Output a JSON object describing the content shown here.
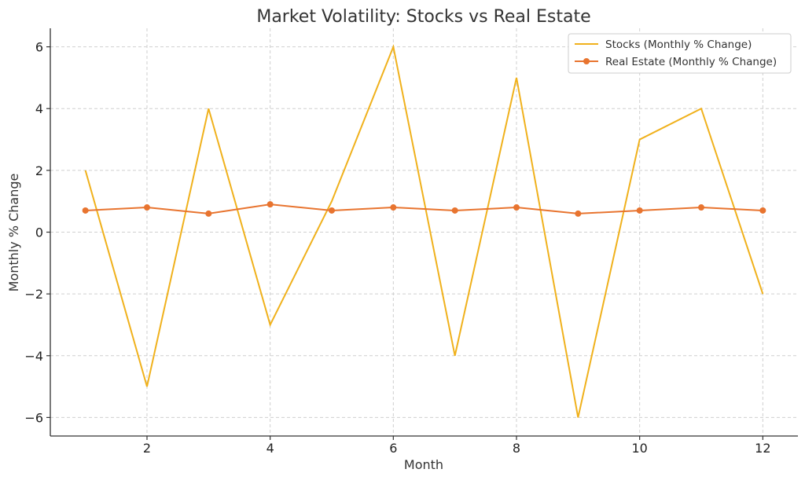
{
  "chart_data": {
    "type": "line",
    "title": "Market Volatility: Stocks vs Real Estate",
    "xlabel": "Month",
    "ylabel": "Monthly % Change",
    "xlim": [
      0.43,
      12.57
    ],
    "ylim": [
      -6.6,
      6.6
    ],
    "xticks": [
      2,
      4,
      6,
      8,
      10,
      12
    ],
    "yticks": [
      -6,
      -4,
      -2,
      0,
      2,
      4,
      6
    ],
    "ytick_labels": [
      "−6",
      "−4",
      "−2",
      "0",
      "2",
      "4",
      "6"
    ],
    "grid": true,
    "legend_position": "top-right",
    "x": [
      1,
      2,
      3,
      4,
      5,
      6,
      7,
      8,
      9,
      10,
      11,
      12
    ],
    "series": [
      {
        "name": "Stocks (Monthly % Change)",
        "color": "#f0b11c",
        "marker": false,
        "values": [
          2,
          -5,
          4,
          -3,
          1,
          6,
          -4,
          5,
          -6,
          3,
          4,
          -2
        ]
      },
      {
        "name": "Real Estate (Monthly % Change)",
        "color": "#e8742f",
        "marker": true,
        "values": [
          0.7,
          0.8,
          0.6,
          0.9,
          0.7,
          0.8,
          0.7,
          0.8,
          0.6,
          0.7,
          0.8,
          0.7
        ]
      }
    ]
  }
}
